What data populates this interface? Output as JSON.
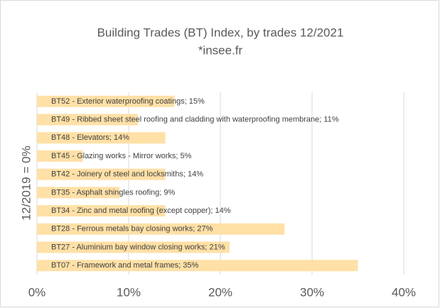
{
  "chart_data": {
    "type": "hbar",
    "title": "Building Trades (BT) Index, by trades 12/2021",
    "subtitle": "*insee.fr",
    "ylabel": "12/2019 = 0%",
    "categories": [
      "BT52 - Exterior waterproofing coatings; 15%",
      "BT49 - Ribbed sheet steel roofing and cladding with waterproofing membrane; 11%",
      "BT48 - Elevators; 14%",
      "BT45 - Glazing works - Mirror works; 5%",
      "BT42 - Joinery of steel and locksmiths; 14%",
      "BT35 - Asphalt shingles roofing; 9%",
      "BT34 - Zinc and metal roofing (except copper); 14%",
      "BT28 - Ferrous metals bay closing works; 27%",
      "BT27 - Aluminium bay window closing works; 21%",
      "BT07 - Framework and metal frames; 35%"
    ],
    "values": [
      15,
      11,
      14,
      5,
      14,
      9,
      14,
      27,
      21,
      35
    ],
    "color": "#ffe0a6",
    "xlim": [
      0,
      40
    ],
    "xticks": [
      {
        "value": 0,
        "label": "0%"
      },
      {
        "value": 10,
        "label": "10%"
      },
      {
        "value": 20,
        "label": "20%"
      },
      {
        "value": 30,
        "label": "30%"
      },
      {
        "value": 40,
        "label": "40%"
      }
    ],
    "grid": true
  }
}
